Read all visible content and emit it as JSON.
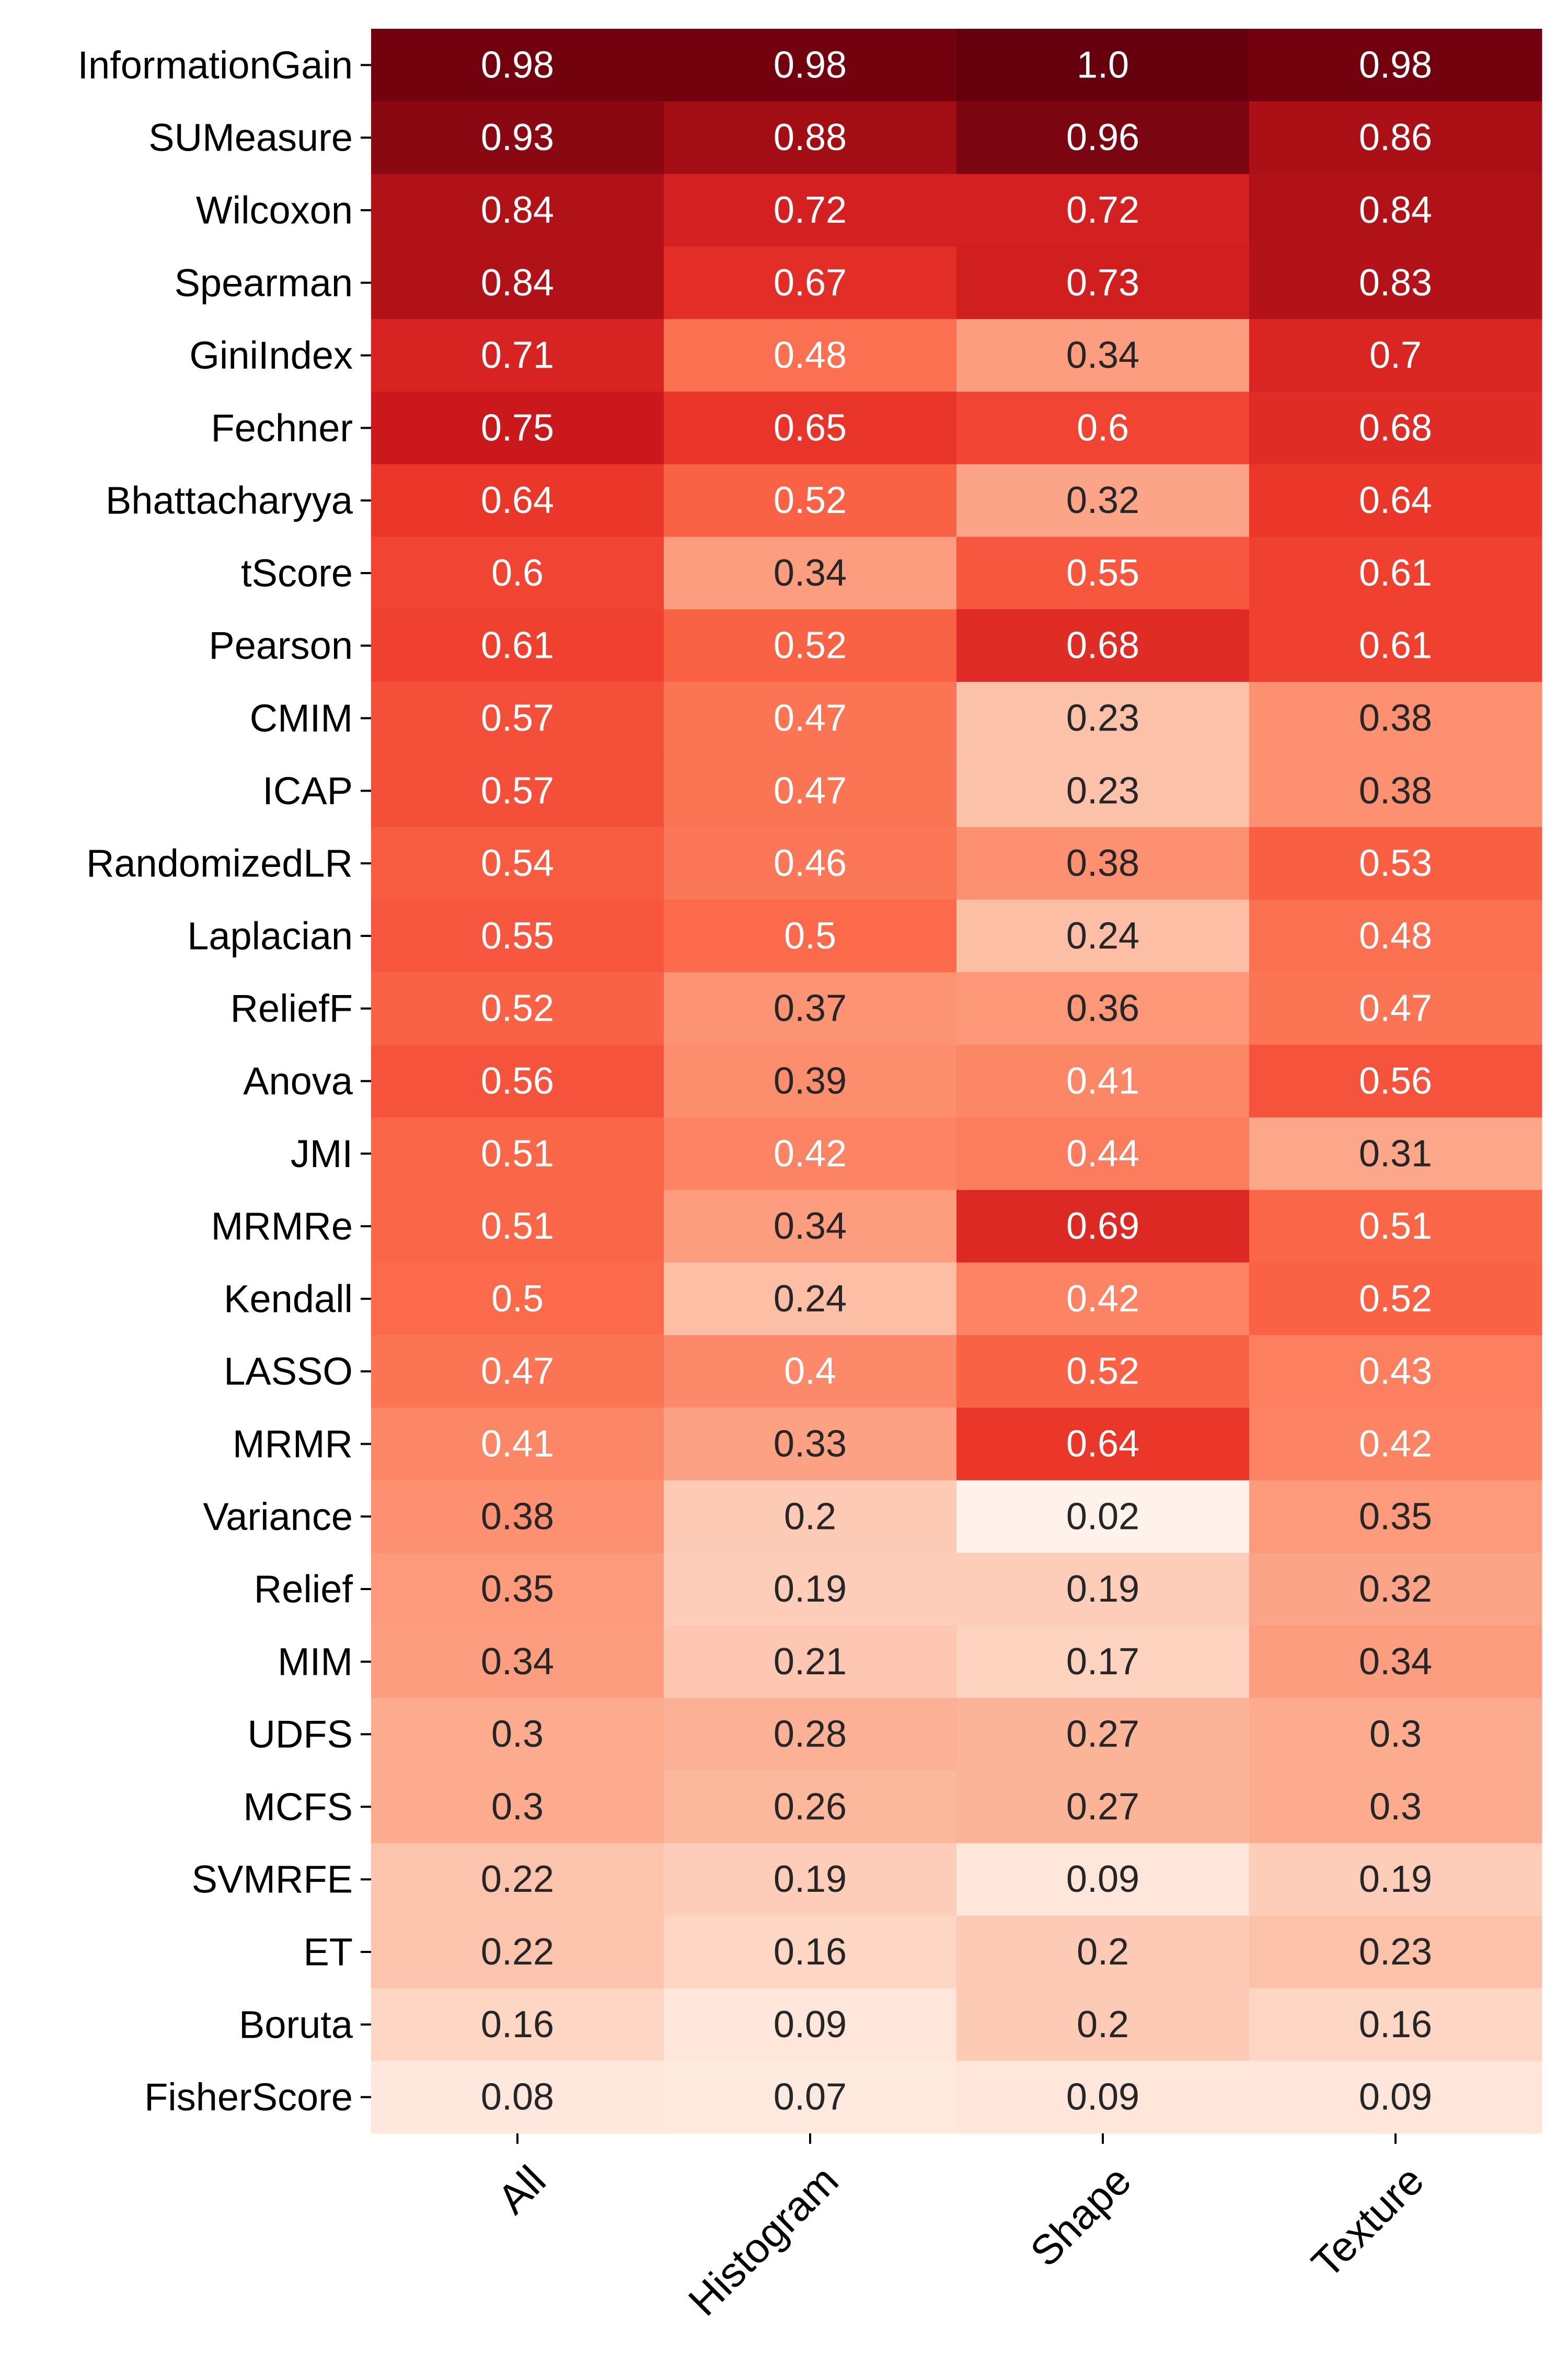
{
  "chart_data": {
    "type": "heatmap",
    "colormap": "Reds",
    "value_range": [
      0,
      1
    ],
    "columns": [
      "All",
      "Histogram",
      "Shape",
      "Texture"
    ],
    "rows": [
      {
        "label": "InformationGain",
        "values": [
          0.98,
          0.98,
          1.0,
          0.98
        ],
        "display": [
          "0.98",
          "0.98",
          "1.0",
          "0.98"
        ]
      },
      {
        "label": "SUMeasure",
        "values": [
          0.93,
          0.88,
          0.96,
          0.86
        ],
        "display": [
          "0.93",
          "0.88",
          "0.96",
          "0.86"
        ]
      },
      {
        "label": "Wilcoxon",
        "values": [
          0.84,
          0.72,
          0.72,
          0.84
        ],
        "display": [
          "0.84",
          "0.72",
          "0.72",
          "0.84"
        ]
      },
      {
        "label": "Spearman",
        "values": [
          0.84,
          0.67,
          0.73,
          0.83
        ],
        "display": [
          "0.84",
          "0.67",
          "0.73",
          "0.83"
        ]
      },
      {
        "label": "GiniIndex",
        "values": [
          0.71,
          0.48,
          0.34,
          0.7
        ],
        "display": [
          "0.71",
          "0.48",
          "0.34",
          "0.7"
        ]
      },
      {
        "label": "Fechner",
        "values": [
          0.75,
          0.65,
          0.6,
          0.68
        ],
        "display": [
          "0.75",
          "0.65",
          "0.6",
          "0.68"
        ]
      },
      {
        "label": "Bhattacharyya",
        "values": [
          0.64,
          0.52,
          0.32,
          0.64
        ],
        "display": [
          "0.64",
          "0.52",
          "0.32",
          "0.64"
        ]
      },
      {
        "label": "tScore",
        "values": [
          0.6,
          0.34,
          0.55,
          0.61
        ],
        "display": [
          "0.6",
          "0.34",
          "0.55",
          "0.61"
        ]
      },
      {
        "label": "Pearson",
        "values": [
          0.61,
          0.52,
          0.68,
          0.61
        ],
        "display": [
          "0.61",
          "0.52",
          "0.68",
          "0.61"
        ]
      },
      {
        "label": "CMIM",
        "values": [
          0.57,
          0.47,
          0.23,
          0.38
        ],
        "display": [
          "0.57",
          "0.47",
          "0.23",
          "0.38"
        ]
      },
      {
        "label": "ICAP",
        "values": [
          0.57,
          0.47,
          0.23,
          0.38
        ],
        "display": [
          "0.57",
          "0.47",
          "0.23",
          "0.38"
        ]
      },
      {
        "label": "RandomizedLR",
        "values": [
          0.54,
          0.46,
          0.38,
          0.53
        ],
        "display": [
          "0.54",
          "0.46",
          "0.38",
          "0.53"
        ]
      },
      {
        "label": "Laplacian",
        "values": [
          0.55,
          0.5,
          0.24,
          0.48
        ],
        "display": [
          "0.55",
          "0.5",
          "0.24",
          "0.48"
        ]
      },
      {
        "label": "ReliefF",
        "values": [
          0.52,
          0.37,
          0.36,
          0.47
        ],
        "display": [
          "0.52",
          "0.37",
          "0.36",
          "0.47"
        ]
      },
      {
        "label": "Anova",
        "values": [
          0.56,
          0.39,
          0.41,
          0.56
        ],
        "display": [
          "0.56",
          "0.39",
          "0.41",
          "0.56"
        ]
      },
      {
        "label": "JMI",
        "values": [
          0.51,
          0.42,
          0.44,
          0.31
        ],
        "display": [
          "0.51",
          "0.42",
          "0.44",
          "0.31"
        ]
      },
      {
        "label": "MRMRe",
        "values": [
          0.51,
          0.34,
          0.69,
          0.51
        ],
        "display": [
          "0.51",
          "0.34",
          "0.69",
          "0.51"
        ]
      },
      {
        "label": "Kendall",
        "values": [
          0.5,
          0.24,
          0.42,
          0.52
        ],
        "display": [
          "0.5",
          "0.24",
          "0.42",
          "0.52"
        ]
      },
      {
        "label": "LASSO",
        "values": [
          0.47,
          0.4,
          0.52,
          0.43
        ],
        "display": [
          "0.47",
          "0.4",
          "0.52",
          "0.43"
        ]
      },
      {
        "label": "MRMR",
        "values": [
          0.41,
          0.33,
          0.64,
          0.42
        ],
        "display": [
          "0.41",
          "0.33",
          "0.64",
          "0.42"
        ]
      },
      {
        "label": "Variance",
        "values": [
          0.38,
          0.2,
          0.02,
          0.35
        ],
        "display": [
          "0.38",
          "0.2",
          "0.02",
          "0.35"
        ]
      },
      {
        "label": "Relief",
        "values": [
          0.35,
          0.19,
          0.19,
          0.32
        ],
        "display": [
          "0.35",
          "0.19",
          "0.19",
          "0.32"
        ]
      },
      {
        "label": "MIM",
        "values": [
          0.34,
          0.21,
          0.17,
          0.34
        ],
        "display": [
          "0.34",
          "0.21",
          "0.17",
          "0.34"
        ]
      },
      {
        "label": "UDFS",
        "values": [
          0.3,
          0.28,
          0.27,
          0.3
        ],
        "display": [
          "0.3",
          "0.28",
          "0.27",
          "0.3"
        ]
      },
      {
        "label": "MCFS",
        "values": [
          0.3,
          0.26,
          0.27,
          0.3
        ],
        "display": [
          "0.3",
          "0.26",
          "0.27",
          "0.3"
        ]
      },
      {
        "label": "SVMRFE",
        "values": [
          0.22,
          0.19,
          0.09,
          0.19
        ],
        "display": [
          "0.22",
          "0.19",
          "0.09",
          "0.19"
        ]
      },
      {
        "label": "ET",
        "values": [
          0.22,
          0.16,
          0.2,
          0.23
        ],
        "display": [
          "0.22",
          "0.16",
          "0.2",
          "0.23"
        ]
      },
      {
        "label": "Boruta",
        "values": [
          0.16,
          0.09,
          0.2,
          0.16
        ],
        "display": [
          "0.16",
          "0.09",
          "0.2",
          "0.16"
        ]
      },
      {
        "label": "FisherScore",
        "values": [
          0.08,
          0.07,
          0.09,
          0.09
        ],
        "display": [
          "0.08",
          "0.07",
          "0.09",
          "0.09"
        ]
      }
    ]
  }
}
